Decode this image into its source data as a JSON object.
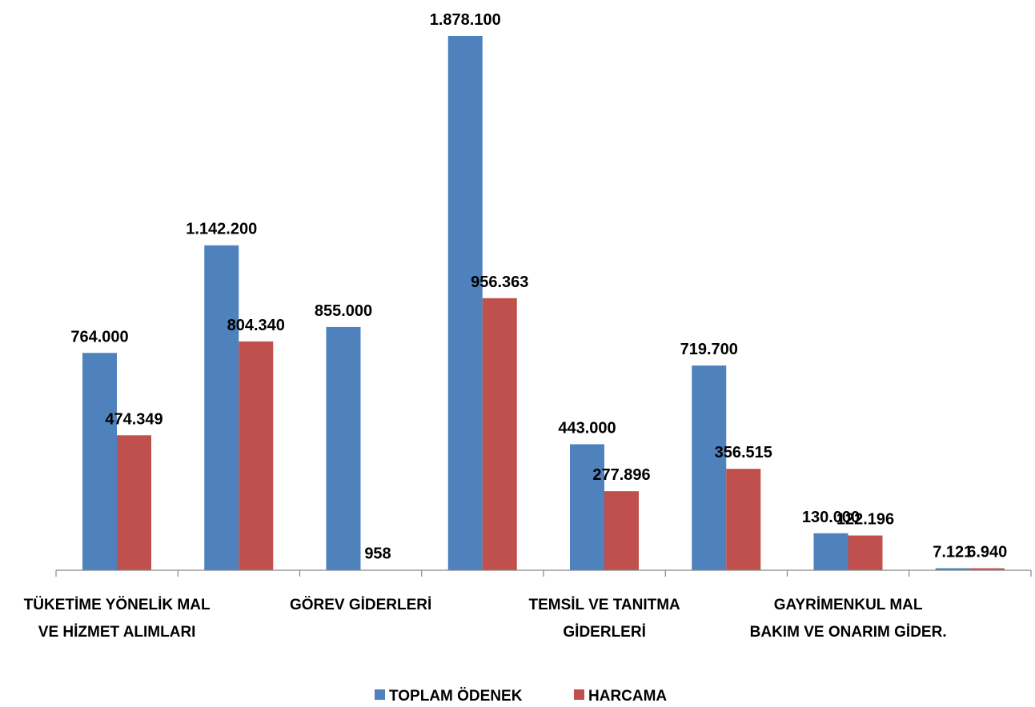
{
  "chart_data": {
    "type": "bar",
    "categories": [
      [
        "TÜKETİME YÖNELİK MAL",
        "VE HİZMET ALIMLARI"
      ],
      [
        "",
        ""
      ],
      [
        "GÖREV GİDERLERİ",
        ""
      ],
      [
        "",
        ""
      ],
      [
        "TEMSİL VE TANITMA",
        "GİDERLERİ"
      ],
      [
        "",
        ""
      ],
      [
        "GAYRİMENKUL MAL",
        "BAKIM VE ONARIM GİDER."
      ],
      [
        "",
        ""
      ]
    ],
    "series": [
      {
        "name": "TOPLAM ÖDENEK",
        "color": "#4F81BD",
        "values": [
          764000,
          1142200,
          855000,
          1878100,
          443000,
          719700,
          130000,
          7121
        ],
        "labels": [
          "764.000",
          "1.142.200",
          "855.000",
          "1.878.100",
          "443.000",
          "719.700",
          "130.000",
          "7.121"
        ]
      },
      {
        "name": "HARCAMA",
        "color": "#C0504D",
        "values": [
          474349,
          804340,
          958,
          956363,
          277896,
          356515,
          122196,
          6940
        ],
        "labels": [
          "474.349",
          "804.340",
          "958",
          "956.363",
          "277.896",
          "356.515",
          "122.196",
          "6.940"
        ]
      }
    ],
    "ylim": [
      0,
      1878100
    ],
    "grid": false,
    "legend_position": "bottom",
    "title": "",
    "xlabel": "",
    "ylabel": ""
  }
}
